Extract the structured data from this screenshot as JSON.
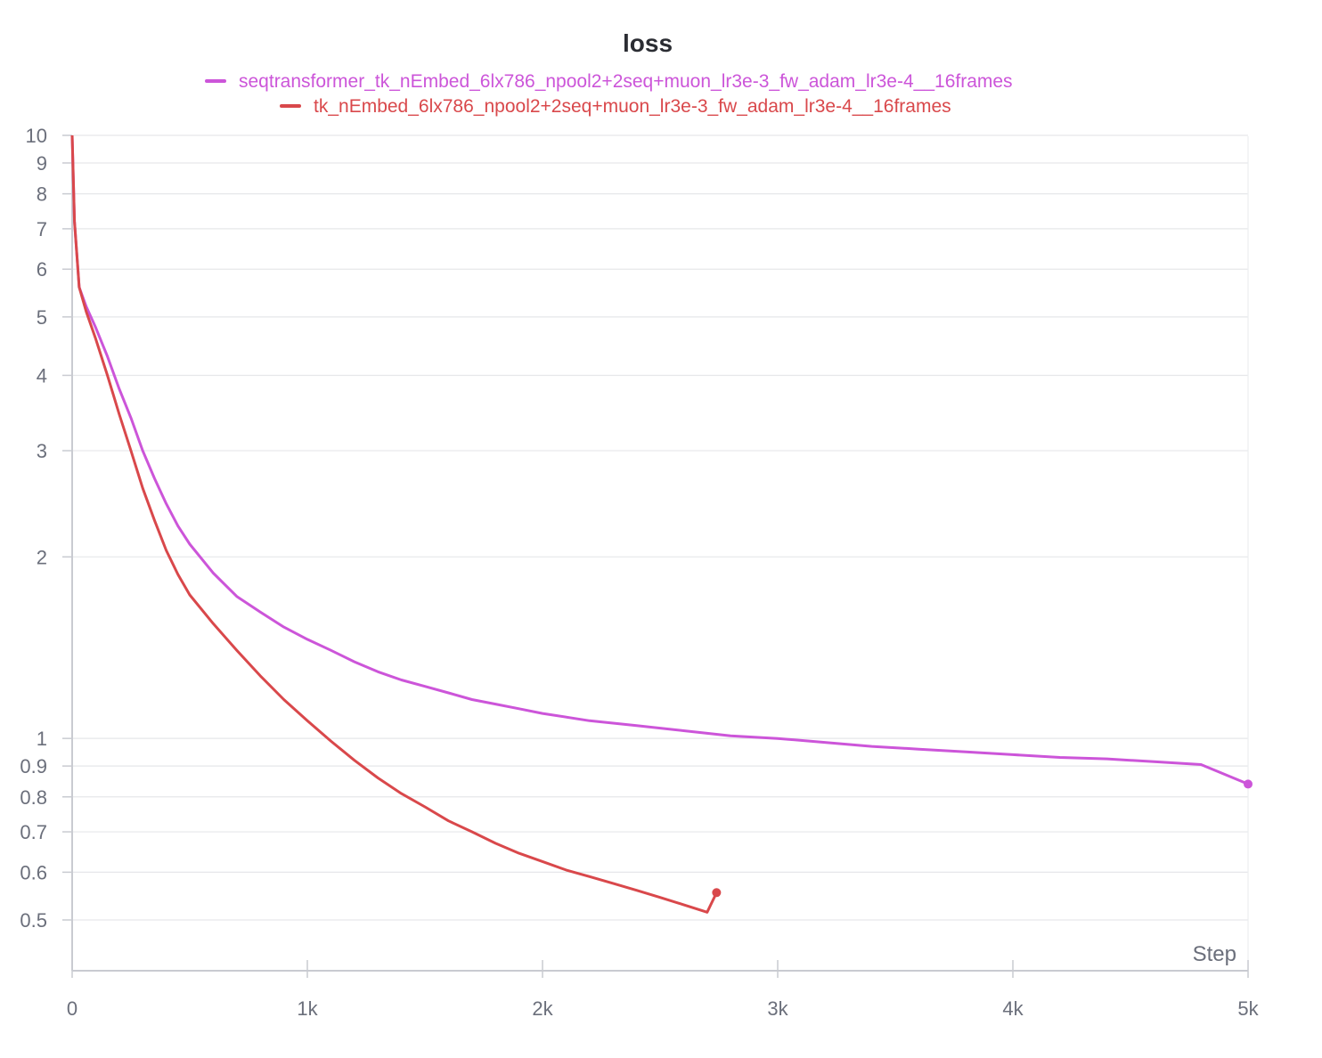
{
  "chart_data": {
    "type": "line",
    "title": "loss",
    "xlabel": "Step",
    "ylabel": "",
    "xlim": [
      0,
      5000
    ],
    "ylim": [
      0.43,
      10
    ],
    "yscale": "log",
    "grid": true,
    "legend_position": "top-center",
    "x_ticks": [
      0,
      1000,
      2000,
      3000,
      4000,
      5000
    ],
    "x_tick_labels": [
      "0",
      "1k",
      "2k",
      "3k",
      "4k",
      "5k"
    ],
    "y_ticks": [
      10,
      9,
      8,
      7,
      6,
      5,
      4,
      3,
      2,
      1,
      0.9,
      0.8,
      0.7,
      0.6,
      0.5
    ],
    "y_tick_labels": [
      "10",
      "9",
      "8",
      "7",
      "6",
      "5",
      "4",
      "3",
      "2",
      "1",
      "0.9",
      "0.8",
      "0.7",
      "0.6",
      "0.5"
    ],
    "series": [
      {
        "name": "seqtransformer_tk_nEmbed_6lx786_npool2+2seq+muon_lr3e-3_fw_adam_lr3e-4__16frames",
        "color": "#cc55d9",
        "x": [
          0,
          10,
          30,
          60,
          100,
          150,
          200,
          250,
          300,
          350,
          400,
          450,
          500,
          600,
          700,
          800,
          900,
          1000,
          1100,
          1200,
          1300,
          1400,
          1500,
          1600,
          1700,
          1800,
          1900,
          2000,
          2200,
          2400,
          2600,
          2800,
          3000,
          3200,
          3400,
          3600,
          3800,
          4000,
          4200,
          4400,
          4600,
          4800,
          5000
        ],
        "y": [
          10,
          7.2,
          5.6,
          5.2,
          4.8,
          4.3,
          3.8,
          3.4,
          3.0,
          2.7,
          2.45,
          2.25,
          2.1,
          1.88,
          1.72,
          1.62,
          1.53,
          1.46,
          1.4,
          1.34,
          1.29,
          1.25,
          1.22,
          1.19,
          1.16,
          1.14,
          1.12,
          1.1,
          1.07,
          1.05,
          1.03,
          1.01,
          1.0,
          0.985,
          0.97,
          0.96,
          0.95,
          0.94,
          0.93,
          0.925,
          0.915,
          0.905,
          0.84
        ]
      },
      {
        "name": "tk_nEmbed_6lx786_npool2+2seq+muon_lr3e-3_fw_adam_lr3e-4__16frames",
        "color": "#d9484b",
        "x": [
          0,
          10,
          30,
          60,
          100,
          150,
          200,
          250,
          300,
          350,
          400,
          450,
          500,
          600,
          700,
          800,
          900,
          1000,
          1100,
          1200,
          1300,
          1400,
          1500,
          1600,
          1700,
          1800,
          1900,
          2000,
          2100,
          2200,
          2300,
          2400,
          2500,
          2600,
          2700,
          2740
        ],
        "y": [
          10,
          7.2,
          5.6,
          5.1,
          4.6,
          4.0,
          3.45,
          3.0,
          2.6,
          2.3,
          2.05,
          1.87,
          1.73,
          1.55,
          1.4,
          1.27,
          1.16,
          1.07,
          0.99,
          0.92,
          0.86,
          0.81,
          0.77,
          0.73,
          0.7,
          0.67,
          0.645,
          0.625,
          0.605,
          0.59,
          0.575,
          0.56,
          0.545,
          0.53,
          0.515,
          0.555
        ]
      }
    ]
  }
}
